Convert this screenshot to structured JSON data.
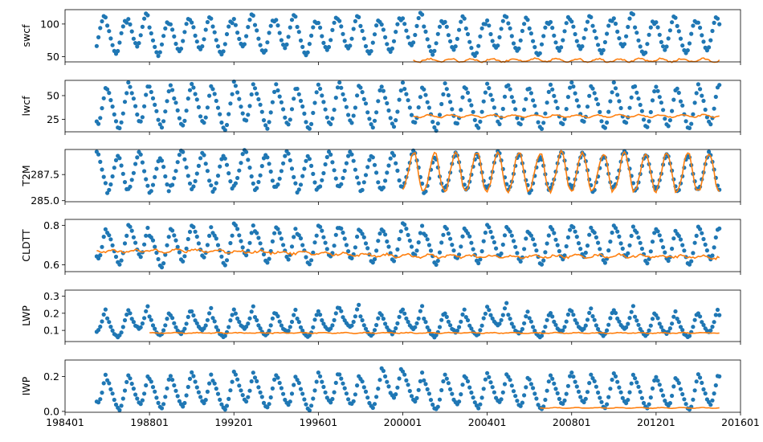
{
  "chart_data": {
    "type": "scatter",
    "layout": "6 vertically stacked subplots sharing a time x-axis",
    "xlim": [
      198401,
      201601
    ],
    "x_tick_labels": [
      "198401",
      "198801",
      "199201",
      "199601",
      "200001",
      "200401",
      "200801",
      "201201",
      "201601"
    ],
    "x_tick_values": [
      198401,
      198801,
      199201,
      199601,
      200001,
      200401,
      200801,
      201201,
      201601
    ],
    "colors": {
      "scatter": "#1f77b4",
      "line": "#ff7f0e"
    },
    "panels": [
      {
        "ylabel": "swcf",
        "ylim": [
          42,
          122
        ],
        "yticks": [
          50,
          100
        ],
        "ytick_labels": [
          "50",
          "100"
        ],
        "scatter": {
          "start": 1985.5,
          "end": 2015.0,
          "season": [
            100,
            92,
            80,
            70,
            62,
            58,
            62,
            74,
            88,
            100,
            108,
            106
          ],
          "phase": [
            5,
            -3,
            8,
            -6,
            0,
            3,
            -4,
            7,
            -2,
            6,
            -5,
            2,
            4,
            -3,
            0,
            9,
            -4,
            3,
            -7,
            5,
            1,
            -6,
            2,
            4,
            -2,
            8,
            -5,
            3,
            -3,
            2,
            0
          ]
        },
        "line": {
          "start": 2000.5,
          "end": 2015.0,
          "mean": 44.5,
          "amp": 2.5,
          "noise": 1.2
        }
      },
      {
        "ylabel": "lwcf",
        "ylim": [
          12,
          66
        ],
        "yticks": [
          25,
          50
        ],
        "ytick_labels": [
          "25",
          "50"
        ],
        "scatter": {
          "start": 1985.5,
          "end": 2015.0,
          "season": [
            60,
            55,
            48,
            42,
            34,
            26,
            20,
            18,
            24,
            34,
            46,
            56
          ],
          "phase": [
            2,
            -3,
            4,
            -1,
            0,
            3,
            -4,
            5,
            -2,
            1,
            -3,
            2,
            4,
            -1,
            0,
            3,
            -4,
            2,
            -2,
            3,
            1,
            -3,
            2,
            4,
            -2,
            3,
            -1,
            0,
            -3,
            2,
            1
          ]
        },
        "line": {
          "start": 2000.5,
          "end": 2015.0,
          "mean": 28.5,
          "amp": 1.3,
          "noise": 0.6
        }
      },
      {
        "ylabel": "T2M",
        "ylim": [
          284.9,
          289.9
        ],
        "yticks": [
          285.0,
          287.5
        ],
        "ytick_labels": [
          "285.0",
          "287.5"
        ],
        "scatter": {
          "start": 1985.5,
          "end": 2015.0,
          "season": [
            286.1,
            286.3,
            286.9,
            287.6,
            288.4,
            289.1,
            289.5,
            289.3,
            288.6,
            287.8,
            287.0,
            286.4
          ],
          "phase": [
            0.2,
            -0.3,
            0.1,
            -0.4,
            0.3,
            0.0,
            -0.2,
            0.3,
            -0.1,
            0.2,
            -0.3,
            0.1,
            0.2,
            -0.2,
            0.0,
            0.3,
            -0.4,
            0.1,
            -0.1,
            0.2,
            0.0,
            -0.3,
            0.2,
            0.1,
            -0.2,
            0.3,
            -0.1,
            0.0,
            -0.2,
            0.1,
            0.0
          ]
        },
        "line": {
          "start": 2000.0,
          "end": 2015.0,
          "season": [
            285.9,
            286.2,
            286.9,
            287.7,
            288.6,
            289.3,
            289.6,
            289.4,
            288.6,
            287.6,
            286.6,
            286.0
          ],
          "noise": 0.2
        }
      },
      {
        "ylabel": "CLDTT",
        "ylim": [
          0.565,
          0.83
        ],
        "yticks": [
          0.6,
          0.8
        ],
        "ytick_labels": [
          "0.6",
          "0.8"
        ],
        "scatter": {
          "start": 1985.5,
          "end": 2015.0,
          "season": [
            0.78,
            0.77,
            0.75,
            0.72,
            0.69,
            0.66,
            0.63,
            0.62,
            0.64,
            0.68,
            0.73,
            0.77
          ],
          "phase": [
            0.01,
            -0.02,
            0.02,
            -0.03,
            0.0,
            0.02,
            -0.02,
            0.03,
            -0.01,
            0.01,
            -0.02,
            0.02,
            0.01,
            -0.01,
            0.0,
            0.03,
            -0.02,
            0.01,
            -0.01,
            0.02,
            0.0,
            -0.02,
            0.01,
            0.02,
            -0.01,
            0.02,
            -0.01,
            0.0,
            -0.02,
            0.01,
            0.0
          ]
        },
        "line": {
          "start": 1985.5,
          "end": 2015.0,
          "trend": [
            [
              1985.5,
              0.668
            ],
            [
              1990.0,
              0.672
            ],
            [
              1995.0,
              0.66
            ],
            [
              2000.0,
              0.645
            ],
            [
              2005.0,
              0.64
            ],
            [
              2010.0,
              0.645
            ],
            [
              2015.0,
              0.638
            ]
          ],
          "amp": 0.006,
          "noise": 0.006
        }
      },
      {
        "ylabel": "LWP",
        "ylim": [
          0.035,
          0.335
        ],
        "yticks": [
          0.1,
          0.2,
          0.3
        ],
        "ytick_labels": [
          "0.1",
          "0.2",
          "0.3"
        ],
        "scatter": {
          "start": 1985.5,
          "end": 2015.0,
          "season": [
            0.19,
            0.17,
            0.14,
            0.12,
            0.1,
            0.09,
            0.08,
            0.09,
            0.11,
            0.14,
            0.18,
            0.21
          ],
          "phase": [
            0.01,
            -0.02,
            0.03,
            -0.01,
            0.0,
            0.02,
            -0.02,
            0.03,
            -0.01,
            0.01,
            -0.02,
            0.02,
            0.04,
            -0.01,
            0.0,
            0.03,
            -0.02,
            0.01,
            -0.01,
            0.05,
            0.0,
            -0.02,
            0.01,
            0.02,
            -0.01,
            0.03,
            -0.01,
            0.0,
            -0.02,
            0.01,
            0.0
          ]
        },
        "line": {
          "start": 1988.0,
          "end": 2015.0,
          "mean": 0.085,
          "amp": 0.002,
          "noise": 0.002
        }
      },
      {
        "ylabel": "IWP",
        "ylim": [
          -0.005,
          0.295
        ],
        "yticks": [
          0.0,
          0.2
        ],
        "ytick_labels": [
          "0.0",
          "0.2"
        ],
        "scatter": {
          "start": 1985.5,
          "end": 2015.0,
          "season": [
            0.2,
            0.18,
            0.15,
            0.12,
            0.09,
            0.06,
            0.04,
            0.03,
            0.05,
            0.09,
            0.14,
            0.19
          ],
          "phase": [
            0.02,
            -0.02,
            0.01,
            -0.01,
            0.0,
            0.02,
            -0.02,
            0.03,
            -0.01,
            0.01,
            -0.02,
            0.02,
            0.01,
            -0.01,
            0.05,
            0.03,
            -0.02,
            0.01,
            -0.01,
            0.02,
            0.0,
            -0.02,
            0.01,
            0.02,
            -0.01,
            0.02,
            -0.01,
            0.0,
            -0.02,
            0.01,
            0.0
          ]
        },
        "line": {
          "start": 2006.5,
          "end": 2015.0,
          "mean": 0.02,
          "amp": 0.002,
          "noise": 0.001
        }
      }
    ]
  }
}
